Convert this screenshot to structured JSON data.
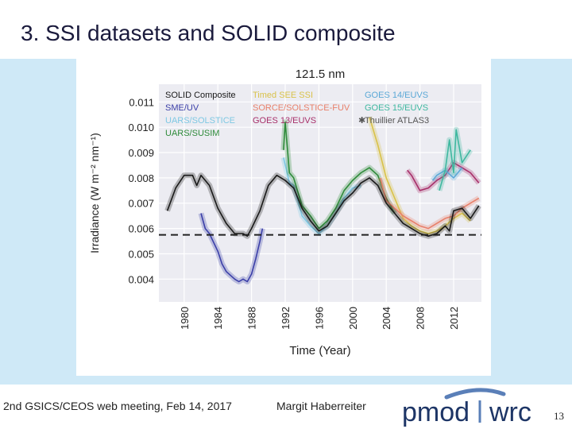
{
  "slide": {
    "title": "3. SSI datasets and SOLID composite",
    "footer_left": "2nd GSICS/CEOS web meeting, Feb 14, 2017",
    "footer_author": "Margit Haberreiter",
    "page_number": "13"
  },
  "logo": {
    "text": "pmod wrc",
    "part1": "pmod",
    "part2": "wrc"
  },
  "chart_data": {
    "type": "line",
    "title": "121.5 nm",
    "xlabel": "Time (Year)",
    "ylabel": "Irradiance (W m⁻² nm⁻¹)",
    "xlim": [
      1977.0,
      2015.3
    ],
    "ylim": [
      0.0031,
      0.0117
    ],
    "x_ticks": [
      1980,
      1984,
      1988,
      1992,
      1996,
      2000,
      2004,
      2008,
      2012
    ],
    "y_ticks": [
      0.004,
      0.005,
      0.006,
      0.007,
      0.008,
      0.009,
      0.01,
      0.011
    ],
    "y_tick_labels": [
      "0.004",
      "0.005",
      "0.006",
      "0.007",
      "0.008",
      "0.009",
      "0.010",
      "0.011"
    ],
    "grid": true,
    "legend_position": "top",
    "reference_line": {
      "name": "Thuillier ATLAS3",
      "y": 0.00575,
      "style": "dashed"
    },
    "series": [
      {
        "name": "SOLID Composite",
        "color": "#1a1a1a",
        "x": [
          1978.0,
          1979.0,
          1980.0,
          1981.0,
          1981.5,
          1982.0,
          1983.0,
          1984.0,
          1985.0,
          1985.5,
          1986.0,
          1987.0,
          1987.5,
          1988.0,
          1989.0,
          1990.0,
          1991.0,
          1992.0,
          1993.0,
          1994.0,
          1995.0,
          1996.0,
          1997.0,
          1998.0,
          1999.0,
          2000.0,
          2001.0,
          2002.0,
          2003.0,
          2004.0,
          2005.0,
          2006.0,
          2007.0,
          2008.0,
          2009.0,
          2010.0,
          2011.0,
          2011.5,
          2012.0,
          2013.0,
          2014.0,
          2015.0
        ],
        "values": [
          0.0067,
          0.0076,
          0.0081,
          0.0081,
          0.0077,
          0.0081,
          0.0077,
          0.0068,
          0.0062,
          0.006,
          0.0058,
          0.0058,
          0.0057,
          0.006,
          0.0067,
          0.0077,
          0.0081,
          0.0079,
          0.0076,
          0.0068,
          0.0063,
          0.0059,
          0.0061,
          0.0066,
          0.0071,
          0.0074,
          0.0078,
          0.008,
          0.0077,
          0.007,
          0.0066,
          0.0062,
          0.006,
          0.0058,
          0.0057,
          0.0058,
          0.0061,
          0.0059,
          0.0067,
          0.0068,
          0.0064,
          0.0069
        ]
      },
      {
        "name": "SME/UV",
        "color": "#3b3fa8",
        "x": [
          1982.0,
          1982.5,
          1983.0,
          1984.0,
          1984.5,
          1985.0,
          1986.0,
          1986.5,
          1987.0,
          1987.5,
          1988.0,
          1988.5,
          1989.0,
          1989.3
        ],
        "values": [
          0.0066,
          0.006,
          0.0058,
          0.0051,
          0.0046,
          0.0043,
          0.004,
          0.0039,
          0.004,
          0.0039,
          0.0042,
          0.0048,
          0.0055,
          0.006
        ]
      },
      {
        "name": "UARS/SOLSTICE",
        "color": "#7ec8e3",
        "x": [
          1991.8,
          1992.5,
          1993.0,
          1994.0,
          1995.0,
          1996.0,
          1997.0,
          1998.0,
          1999.0,
          2000.0,
          2001.0
        ],
        "values": [
          0.0088,
          0.0078,
          0.0077,
          0.0065,
          0.0061,
          0.0058,
          0.0061,
          0.0066,
          0.0072,
          0.0076,
          0.0077
        ]
      },
      {
        "name": "UARS/SUSIM",
        "color": "#2e8b3a",
        "x": [
          1991.8,
          1992.0,
          1992.5,
          1993.0,
          1994.0,
          1995.0,
          1996.0,
          1997.0,
          1998.0,
          1999.0,
          2000.0,
          2001.0,
          2002.0,
          2003.0,
          2004.0,
          2005.0
        ],
        "values": [
          0.0091,
          0.0102,
          0.0082,
          0.008,
          0.0069,
          0.0065,
          0.006,
          0.0063,
          0.0068,
          0.0075,
          0.0079,
          0.0082,
          0.0084,
          0.0081,
          0.0072,
          0.0066
        ]
      },
      {
        "name": "Timed SEE SSI",
        "color": "#d9c24a",
        "x": [
          2002.0,
          2003.0,
          2004.0,
          2005.0,
          2006.0,
          2007.0,
          2008.0,
          2009.0,
          2010.0,
          2011.0,
          2012.0,
          2013.0,
          2014.0
        ],
        "values": [
          0.0104,
          0.0093,
          0.008,
          0.0072,
          0.0064,
          0.0061,
          0.0059,
          0.0058,
          0.0059,
          0.0061,
          0.0064,
          0.0066,
          0.0063
        ]
      },
      {
        "name": "SORCE/SOLSTICE-FUV",
        "color": "#e8806a",
        "x": [
          2003.3,
          2004.0,
          2005.0,
          2006.0,
          2007.0,
          2008.0,
          2009.0,
          2010.0,
          2011.0,
          2012.0,
          2013.0,
          2014.0,
          2015.0
        ],
        "values": [
          0.008,
          0.0071,
          0.0068,
          0.0065,
          0.0063,
          0.0061,
          0.006,
          0.0062,
          0.0064,
          0.0065,
          0.0068,
          0.007,
          0.0072
        ]
      },
      {
        "name": "GOES 13/EUVS",
        "color": "#a8306a",
        "x": [
          2006.5,
          2007.0,
          2008.0,
          2009.0,
          2010.0,
          2011.0,
          2012.0,
          2013.0,
          2014.0,
          2015.0
        ],
        "values": [
          0.0083,
          0.0081,
          0.0075,
          0.0076,
          0.0079,
          0.0081,
          0.0086,
          0.0084,
          0.0082,
          0.0078
        ]
      },
      {
        "name": "GOES 14/EUVS",
        "color": "#5ba8d6",
        "x": [
          2009.5,
          2010.0,
          2011.0,
          2012.0,
          2013.0
        ],
        "values": [
          0.0079,
          0.0081,
          0.0083,
          0.008,
          0.0084
        ]
      },
      {
        "name": "GOES 15/EUVS",
        "color": "#3fb8a0",
        "x": [
          2010.3,
          2011.0,
          2011.5,
          2012.0,
          2012.3,
          2013.0,
          2014.0
        ],
        "values": [
          0.0075,
          0.0083,
          0.0095,
          0.0082,
          0.0099,
          0.0086,
          0.0091
        ]
      }
    ]
  }
}
